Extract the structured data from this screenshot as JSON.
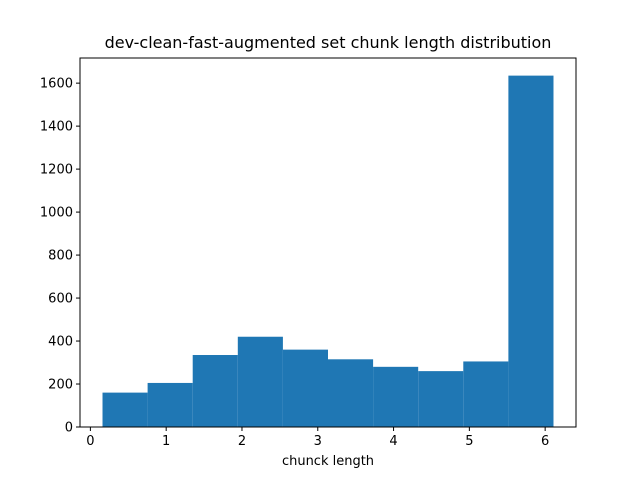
{
  "chart_data": {
    "type": "bar",
    "title": "dev-clean-fast-augmented set chunk length distribution",
    "xlabel": "chunck length",
    "ylabel": "",
    "bins": [
      {
        "x0": 0.16,
        "x1": 0.755,
        "value": 160
      },
      {
        "x0": 0.755,
        "x1": 1.35,
        "value": 205
      },
      {
        "x0": 1.35,
        "x1": 1.945,
        "value": 335
      },
      {
        "x0": 1.945,
        "x1": 2.54,
        "value": 420
      },
      {
        "x0": 2.54,
        "x1": 3.135,
        "value": 360
      },
      {
        "x0": 3.135,
        "x1": 3.73,
        "value": 315
      },
      {
        "x0": 3.73,
        "x1": 4.325,
        "value": 280
      },
      {
        "x0": 4.325,
        "x1": 4.92,
        "value": 260
      },
      {
        "x0": 4.92,
        "x1": 5.515,
        "value": 305
      },
      {
        "x0": 5.515,
        "x1": 6.11,
        "value": 1635
      }
    ],
    "xlim": [
      -0.137,
      6.407
    ],
    "ylim": [
      0,
      1717
    ],
    "xticks": [
      0,
      1,
      2,
      3,
      4,
      5,
      6
    ],
    "yticks": [
      0,
      200,
      400,
      600,
      800,
      1000,
      1200,
      1400,
      1600
    ],
    "bar_color": "#1f77b4",
    "grid": false
  }
}
